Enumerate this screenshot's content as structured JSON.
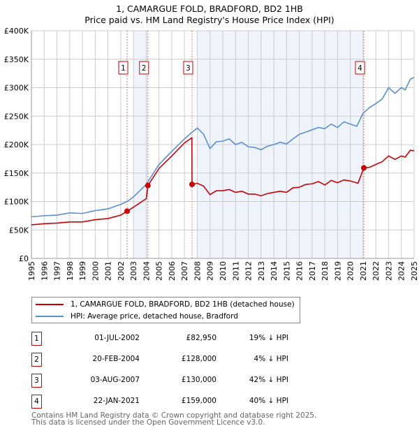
{
  "chart_data": {
    "type": "line",
    "title": "1, CAMARGUE FOLD, BRADFORD, BD2 1HB",
    "subtitle": "Price paid vs. HM Land Registry's House Price Index (HPI)",
    "xlim": [
      1995,
      2025
    ],
    "ylim": [
      0,
      400000
    ],
    "y_ticks": [
      0,
      50000,
      100000,
      150000,
      200000,
      250000,
      300000,
      350000,
      400000
    ],
    "y_tick_labels": [
      "£0",
      "£50K",
      "£100K",
      "£150K",
      "£200K",
      "£250K",
      "£300K",
      "£350K",
      "£400K"
    ],
    "x_ticks": [
      1995,
      1996,
      1997,
      1998,
      1999,
      2000,
      2001,
      2002,
      2003,
      2004,
      2005,
      2006,
      2007,
      2008,
      2009,
      2010,
      2011,
      2012,
      2013,
      2014,
      2015,
      2016,
      2017,
      2018,
      2019,
      2020,
      2021,
      2022,
      2023,
      2024,
      2025
    ],
    "grid": true,
    "shaded_ranges": [
      [
        2003.0,
        2004.13
      ],
      [
        2008.0,
        2021.06
      ]
    ],
    "series": [
      {
        "name": "1, CAMARGUE FOLD, BRADFORD, BD2 1HB (detached house)",
        "color": "#cc0000",
        "x": [
          1995,
          1996,
          1997,
          1998,
          1999,
          2000,
          2001,
          2002,
          2002.5,
          2003,
          2003.8,
          2004.0,
          2004.13,
          2005,
          2006,
          2007,
          2007.58,
          2007.59,
          2008,
          2008.5,
          2009,
          2009.5,
          2010,
          2010.5,
          2011,
          2011.5,
          2012,
          2012.5,
          2013,
          2013.5,
          2014,
          2014.5,
          2015,
          2015.5,
          2016,
          2016.5,
          2017,
          2017.5,
          2018,
          2018.5,
          2019,
          2019.5,
          2020,
          2020.6,
          2021.06,
          2021.5,
          2022,
          2022.5,
          2023,
          2023.5,
          2024,
          2024.3,
          2024.7,
          2025
        ],
        "y": [
          59000,
          61000,
          62000,
          64000,
          64000,
          68000,
          70000,
          76000,
          82950,
          90000,
          102000,
          105000,
          128000,
          158000,
          180000,
          203000,
          212000,
          130000,
          132000,
          127000,
          112000,
          119000,
          119000,
          121000,
          116000,
          118000,
          113000,
          113000,
          110000,
          114000,
          116000,
          118000,
          116000,
          124000,
          125000,
          130000,
          131000,
          135000,
          129000,
          137000,
          133000,
          138000,
          136000,
          132000,
          159000,
          160000,
          165000,
          170000,
          180000,
          174000,
          180000,
          178000,
          190000,
          189000
        ]
      },
      {
        "name": "HPI: Average price, detached house, Bradford",
        "color": "#5b8fd0",
        "x": [
          1995,
          1996,
          1997,
          1998,
          1999,
          2000,
          2001,
          2002,
          2002.5,
          2003,
          2004,
          2005,
          2006,
          2007,
          2007.5,
          2008,
          2008.5,
          2009,
          2009.5,
          2010,
          2010.5,
          2011,
          2011.5,
          2012,
          2012.5,
          2013,
          2013.5,
          2014,
          2014.5,
          2015,
          2015.5,
          2016,
          2016.5,
          2017,
          2017.5,
          2018,
          2018.5,
          2019,
          2019.5,
          2020,
          2020.5,
          2021,
          2021.5,
          2022,
          2022.5,
          2023,
          2023.5,
          2024,
          2024.3,
          2024.7,
          2025
        ],
        "y": [
          73000,
          75000,
          76000,
          80000,
          79000,
          84000,
          87000,
          95000,
          100000,
          108000,
          130000,
          165000,
          188000,
          210000,
          220000,
          229000,
          218000,
          193000,
          205000,
          206000,
          210000,
          200000,
          204000,
          196000,
          195000,
          191000,
          197000,
          200000,
          204000,
          201000,
          210000,
          218000,
          222000,
          226000,
          230000,
          228000,
          236000,
          230000,
          240000,
          236000,
          232000,
          255000,
          265000,
          272000,
          280000,
          300000,
          290000,
          300000,
          296000,
          315000,
          318000
        ]
      }
    ],
    "sales": [
      {
        "label": "1",
        "date": "01-JUL-2002",
        "x": 2002.5,
        "price": "£82,950",
        "value": 82950,
        "hpi": "19% ↓ HPI"
      },
      {
        "label": "2",
        "date": "20-FEB-2004",
        "x": 2004.13,
        "price": "£128,000",
        "value": 128000,
        "hpi": "4% ↓ HPI"
      },
      {
        "label": "3",
        "date": "03-AUG-2007",
        "x": 2007.59,
        "price": "£130,000",
        "value": 130000,
        "hpi": "42% ↓ HPI"
      },
      {
        "label": "4",
        "date": "22-JAN-2021",
        "x": 2021.06,
        "price": "£159,000",
        "value": 159000,
        "hpi": "40% ↓ HPI"
      }
    ]
  },
  "footer": [
    "Contains HM Land Registry data © Crown copyright and database right 2025.",
    "This data is licensed under the Open Government Licence v3.0."
  ]
}
